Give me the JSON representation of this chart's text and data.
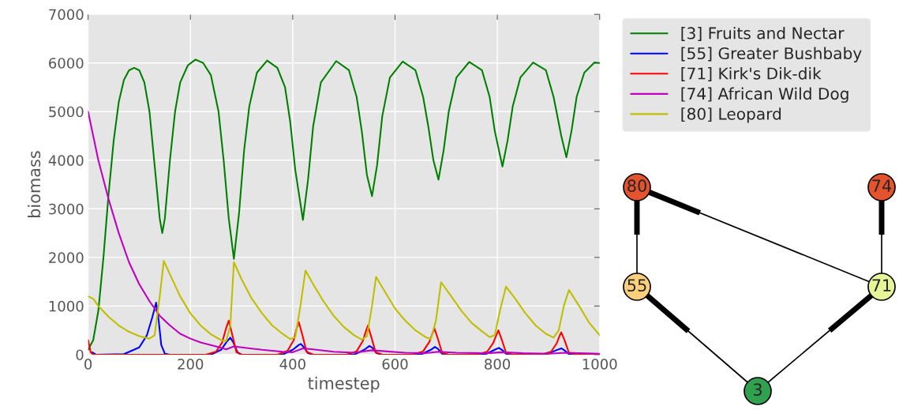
{
  "chart_data": {
    "type": "line",
    "xlabel": "timestep",
    "ylabel": "biomass",
    "xlim": [
      0,
      1000
    ],
    "ylim": [
      0,
      7000
    ],
    "xticks": [
      0,
      200,
      400,
      600,
      800,
      1000
    ],
    "yticks": [
      0,
      1000,
      2000,
      3000,
      4000,
      5000,
      6000,
      7000
    ],
    "grid": true,
    "legend": "top right",
    "annotations": [
      "80",
      "74",
      "55",
      "71",
      "3"
    ],
    "series": [
      {
        "name": "[3] Fruits and Nectar",
        "color": "#008000",
        "x": [
          0,
          10,
          20,
          30,
          40,
          50,
          60,
          70,
          80,
          90,
          100,
          110,
          120,
          130,
          140,
          145,
          150,
          160,
          170,
          180,
          195,
          210,
          225,
          240,
          255,
          265,
          275,
          285,
          295,
          305,
          315,
          330,
          350,
          370,
          385,
          395,
          405,
          420,
          430,
          440,
          455,
          485,
          510,
          525,
          535,
          545,
          555,
          565,
          575,
          590,
          615,
          640,
          655,
          665,
          675,
          685,
          695,
          705,
          720,
          745,
          770,
          785,
          795,
          810,
          820,
          830,
          845,
          870,
          895,
          910,
          925,
          935,
          945,
          955,
          970,
          990,
          1000
        ],
        "values": [
          100,
          300,
          900,
          2000,
          3300,
          4400,
          5200,
          5650,
          5850,
          5900,
          5850,
          5600,
          5000,
          3900,
          2800,
          2500,
          2800,
          4000,
          5000,
          5600,
          5950,
          6070,
          6000,
          5750,
          5000,
          4000,
          2800,
          1970,
          2900,
          4200,
          5100,
          5800,
          6050,
          5900,
          5500,
          4800,
          3800,
          2770,
          3600,
          4700,
          5600,
          6040,
          5850,
          5300,
          4600,
          3700,
          3260,
          3900,
          4900,
          5700,
          6030,
          5850,
          5300,
          4700,
          4000,
          3600,
          4200,
          5000,
          5700,
          6020,
          5850,
          5300,
          4600,
          3870,
          4400,
          5100,
          5700,
          6010,
          5850,
          5300,
          4500,
          4060,
          4600,
          5300,
          5800,
          6010,
          6000
        ]
      },
      {
        "name": "[55] Greater Bushbaby",
        "color": "#0000ff",
        "x": [
          8,
          15,
          70,
          100,
          115,
          125,
          133,
          138,
          143,
          150,
          160,
          240,
          260,
          272,
          278,
          284,
          292,
          300,
          380,
          400,
          412,
          416,
          422,
          430,
          440,
          520,
          540,
          550,
          556,
          564,
          575,
          650,
          670,
          678,
          684,
          692,
          705,
          775,
          795,
          803,
          809,
          817,
          830,
          895,
          915,
          925,
          931,
          940,
          955,
          1000
        ],
        "values": [
          50,
          0,
          10,
          150,
          400,
          750,
          1070,
          700,
          200,
          20,
          0,
          0,
          100,
          280,
          350,
          250,
          50,
          0,
          0,
          100,
          200,
          220,
          150,
          30,
          0,
          0,
          100,
          180,
          140,
          30,
          0,
          0,
          100,
          160,
          120,
          20,
          0,
          0,
          100,
          140,
          100,
          20,
          0,
          0,
          90,
          130,
          90,
          10,
          0,
          0
        ]
      },
      {
        "name": "[71] Kirk's Dik-dik",
        "color": "#ff0000",
        "x": [
          0,
          5,
          10,
          230,
          250,
          262,
          270,
          275,
          282,
          290,
          300,
          370,
          390,
          402,
          408,
          412,
          419,
          427,
          440,
          505,
          525,
          537,
          543,
          547,
          554,
          562,
          575,
          635,
          655,
          667,
          673,
          677,
          684,
          692,
          705,
          760,
          780,
          792,
          798,
          802,
          809,
          817,
          830,
          885,
          905,
          916,
          921,
          925,
          932,
          940,
          955,
          1000
        ],
        "values": [
          300,
          50,
          0,
          0,
          60,
          250,
          550,
          700,
          400,
          50,
          0,
          0,
          80,
          300,
          550,
          670,
          400,
          60,
          0,
          0,
          70,
          280,
          480,
          600,
          350,
          50,
          0,
          0,
          70,
          260,
          430,
          540,
          320,
          40,
          0,
          0,
          60,
          240,
          400,
          500,
          300,
          40,
          0,
          0,
          60,
          230,
          370,
          460,
          280,
          40,
          0,
          0
        ]
      },
      {
        "name": "[74] African Wild Dog",
        "color": "#bf00bf",
        "x": [
          0,
          20,
          40,
          60,
          80,
          100,
          120,
          140,
          160,
          180,
          200,
          220,
          250,
          270,
          285,
          300,
          340,
          380,
          400,
          420,
          440,
          480,
          520,
          555,
          580,
          620,
          660,
          685,
          720,
          780,
          810,
          850,
          900,
          935,
          1000
        ],
        "values": [
          5000,
          4000,
          3200,
          2500,
          1900,
          1450,
          1100,
          800,
          600,
          430,
          330,
          250,
          170,
          110,
          170,
          150,
          100,
          60,
          50,
          130,
          110,
          60,
          40,
          90,
          70,
          40,
          30,
          60,
          40,
          30,
          50,
          30,
          20,
          40,
          20
        ]
      },
      {
        "name": "[80] Leopard",
        "color": "#bfbf00",
        "x": [
          0,
          10,
          20,
          40,
          60,
          80,
          100,
          120,
          130,
          140,
          148,
          160,
          180,
          200,
          220,
          240,
          260,
          270,
          278,
          285,
          300,
          320,
          340,
          360,
          380,
          395,
          405,
          415,
          425,
          440,
          460,
          480,
          500,
          520,
          535,
          545,
          555,
          563,
          580,
          600,
          620,
          640,
          660,
          670,
          680,
          690,
          710,
          730,
          750,
          770,
          785,
          795,
          805,
          817,
          835,
          855,
          875,
          895,
          910,
          920,
          930,
          940,
          960,
          980,
          1000
        ],
        "values": [
          1200,
          1150,
          1000,
          780,
          600,
          470,
          380,
          330,
          400,
          1200,
          1930,
          1650,
          1200,
          850,
          600,
          420,
          300,
          280,
          600,
          1900,
          1550,
          1150,
          850,
          600,
          430,
          320,
          360,
          1000,
          1730,
          1450,
          1100,
          800,
          570,
          400,
          310,
          380,
          1000,
          1600,
          1300,
          950,
          700,
          500,
          360,
          320,
          700,
          1490,
          1200,
          900,
          650,
          480,
          360,
          400,
          900,
          1400,
          1150,
          850,
          600,
          430,
          350,
          500,
          1000,
          1330,
          1000,
          650,
          400
        ]
      }
    ]
  }
}
